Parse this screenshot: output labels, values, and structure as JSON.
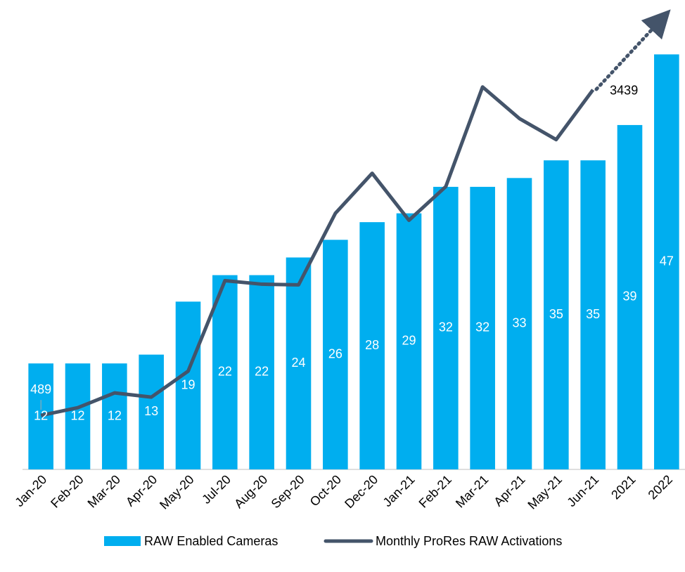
{
  "chart_data": {
    "type": "bar_line",
    "categories": [
      "Jan-20",
      "Feb-20",
      "Mar-20",
      "Apr-20",
      "May-20",
      "Jul-20",
      "Aug-20",
      "Sep-20",
      "Oct-20",
      "Dec-20",
      "Jan-21",
      "Feb-21",
      "Mar-21",
      "Apr-21",
      "May-21",
      "Jun-21",
      "2021",
      "2022"
    ],
    "series": [
      {
        "name": "RAW Enabled Cameras",
        "type": "bar",
        "color": "#00aeef",
        "values": [
          12,
          12,
          12,
          13,
          19,
          22,
          22,
          24,
          26,
          28,
          29,
          32,
          32,
          33,
          35,
          35,
          39,
          47
        ]
      },
      {
        "name": "Monthly ProRes RAW Activations",
        "type": "line",
        "axis": "y2",
        "color": "#44546a",
        "values": [
          489,
          559,
          693,
          655,
          890,
          1710,
          1678,
          1672,
          2320,
          2683,
          2257,
          2562,
          3465,
          3179,
          2988,
          3439,
          null,
          null
        ],
        "value_labels": [
          "489",
          null,
          null,
          null,
          null,
          null,
          null,
          null,
          null,
          null,
          null,
          null,
          null,
          null,
          null,
          "3439",
          null,
          null
        ]
      }
    ],
    "ylim": [
      0,
      53
    ],
    "y2lim": [
      0,
      4240
    ],
    "legend": "bottom"
  }
}
